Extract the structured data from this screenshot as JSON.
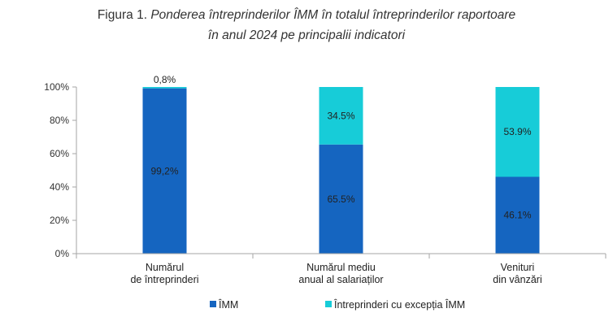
{
  "title": {
    "prefix": "Figura 1.",
    "line1": "Ponderea întreprinderilor ÎMM în totalul întreprinderilor raportoare",
    "line2": "în anul 2024 pe principalii indicatori"
  },
  "chart_data": {
    "type": "bar",
    "stacked": true,
    "categories": [
      [
        "Numărul",
        "de întreprinderi"
      ],
      [
        "Numărul mediu",
        "anual al salariaților"
      ],
      [
        "Venituri",
        "din vânzări"
      ]
    ],
    "series": [
      {
        "name": "ÎMM",
        "color": "#1565C0",
        "values": [
          99.2,
          65.5,
          46.1
        ],
        "labels": [
          "99,2%",
          "65.5%",
          "46.1%"
        ]
      },
      {
        "name": "Întreprinderi cu excepția ÎMM",
        "color": "#17CCD8",
        "values": [
          0.8,
          34.5,
          53.9
        ],
        "labels": [
          "0,8%",
          "34.5%",
          "53.9%"
        ]
      }
    ],
    "yticks": [
      "0%",
      "20%",
      "40%",
      "60%",
      "80%",
      "100%"
    ],
    "ylim": [
      0,
      100
    ],
    "legend_position": "bottom",
    "grid": false
  }
}
